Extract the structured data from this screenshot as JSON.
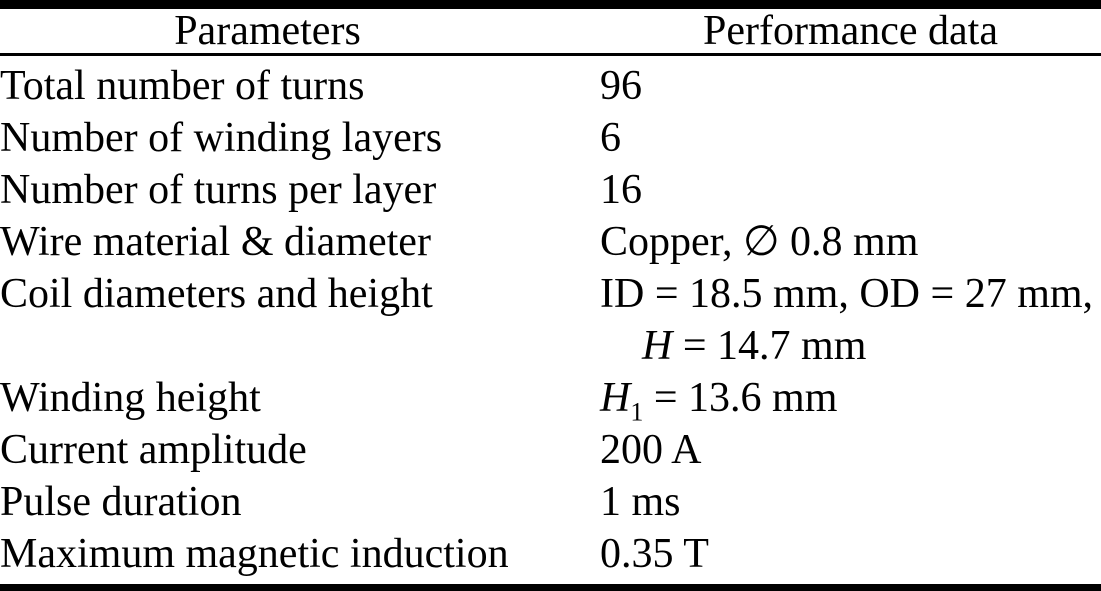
{
  "table": {
    "columns": [
      {
        "label": "Parameters"
      },
      {
        "label": "Performance data"
      }
    ],
    "rows": [
      {
        "param": "Total number of turns",
        "value": "96"
      },
      {
        "param": "Number of winding layers",
        "value": "6"
      },
      {
        "param": "Number of turns per layer",
        "value": "16"
      },
      {
        "param": "Wire material & diameter",
        "value": "Copper, ∅ 0.8 mm"
      },
      {
        "param": "Coil diameters and height",
        "value_line1": "ID = 18.5 mm, OD = 27 mm,",
        "value_line2_var": "H",
        "value_line2_rest": " = 14.7 mm"
      },
      {
        "param": "Winding height",
        "value_var": "H",
        "value_sub": "1",
        "value_rest": " = 13.6 mm"
      },
      {
        "param": "Current amplitude",
        "value": "200 A"
      },
      {
        "param": "Pulse duration",
        "value": "1 ms"
      },
      {
        "param": "Maximum magnetic induction",
        "value": "0.35 T"
      }
    ],
    "colors": {
      "text": "#000000",
      "background": "#ffffff",
      "rule": "#000000"
    }
  }
}
